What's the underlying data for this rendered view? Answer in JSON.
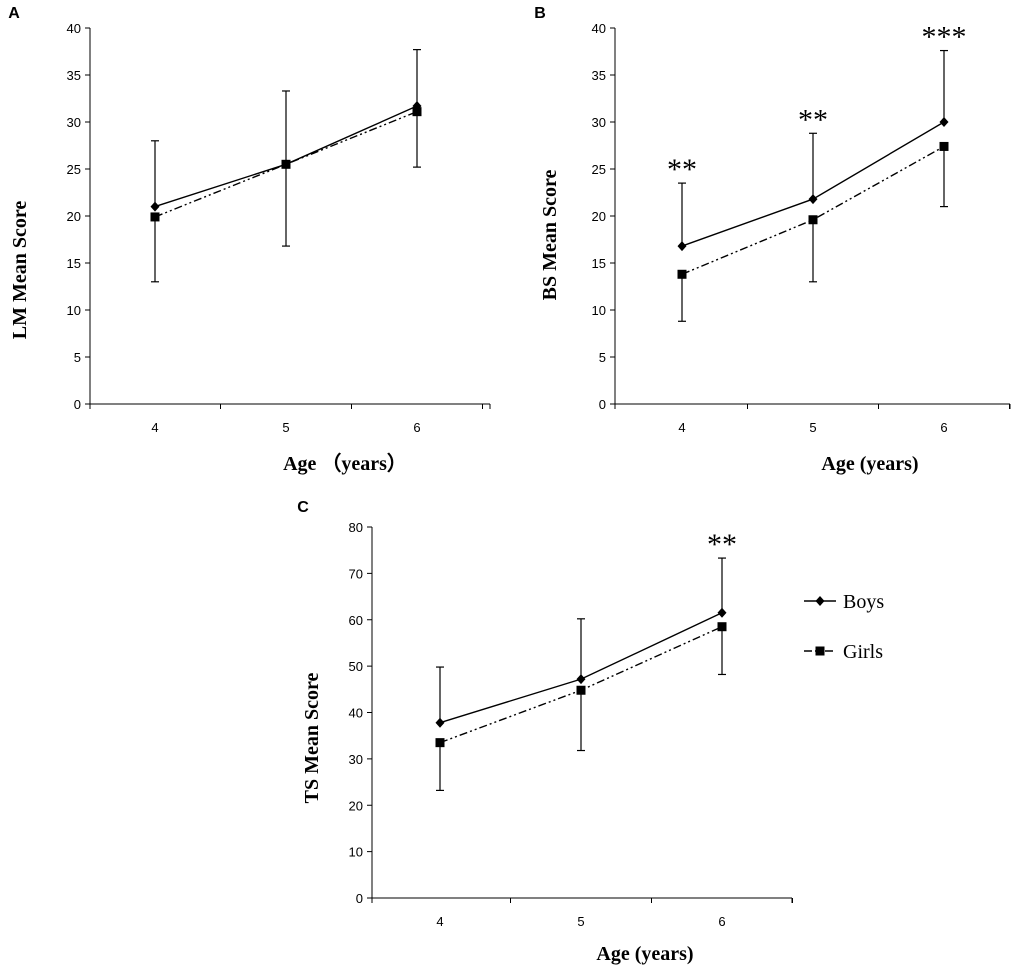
{
  "legend": {
    "items": [
      "Boys",
      "Girls"
    ],
    "placement": "right of panel C"
  },
  "chart_data": [
    {
      "panel": "A",
      "type": "line",
      "title": "",
      "xlabel": "Age （years）",
      "ylabel": "LM Mean Score",
      "categories": [
        "4",
        "5",
        "6"
      ],
      "ylim": [
        0,
        40
      ],
      "yticks": [
        0,
        5,
        10,
        15,
        20,
        25,
        30,
        35,
        40
      ],
      "series": [
        {
          "name": "Boys",
          "marker": "diamond",
          "style": "solid",
          "values": [
            21,
            25.5,
            31.7
          ],
          "error_high": [
            28,
            33.3,
            37.7
          ],
          "error_low": [
            null,
            null,
            null
          ]
        },
        {
          "name": "Girls",
          "marker": "square",
          "style": "dash-dot-dot",
          "values": [
            19.9,
            25.5,
            31.1
          ],
          "error_high": [
            null,
            null,
            null
          ],
          "error_low": [
            13,
            16.8,
            25.2
          ]
        }
      ],
      "significance": [
        "",
        "",
        ""
      ]
    },
    {
      "panel": "B",
      "type": "line",
      "title": "",
      "xlabel": "Age  (years)",
      "ylabel": "BS Mean Score",
      "categories": [
        "4",
        "5",
        "6"
      ],
      "ylim": [
        0,
        40
      ],
      "yticks": [
        0,
        5,
        10,
        15,
        20,
        25,
        30,
        35,
        40
      ],
      "series": [
        {
          "name": "Boys",
          "marker": "diamond",
          "style": "solid",
          "values": [
            16.8,
            21.8,
            30
          ],
          "error_high": [
            23.5,
            28.8,
            37.6
          ],
          "error_low": [
            null,
            null,
            null
          ]
        },
        {
          "name": "Girls",
          "marker": "square",
          "style": "dash-dot-dot",
          "values": [
            13.8,
            19.6,
            27.4
          ],
          "error_high": [
            null,
            null,
            null
          ],
          "error_low": [
            8.8,
            13,
            21
          ]
        }
      ],
      "significance": [
        "**",
        "**",
        "***"
      ]
    },
    {
      "panel": "C",
      "type": "line",
      "title": "",
      "xlabel": "Age  (years)",
      "ylabel": "TS Mean Score",
      "categories": [
        "4",
        "5",
        "6"
      ],
      "ylim": [
        0,
        80
      ],
      "yticks": [
        0,
        10,
        20,
        30,
        40,
        50,
        60,
        70,
        80
      ],
      "series": [
        {
          "name": "Boys",
          "marker": "diamond",
          "style": "solid",
          "values": [
            37.8,
            47.2,
            61.5
          ],
          "error_high": [
            49.8,
            60.2,
            73.3
          ],
          "error_low": [
            null,
            null,
            null
          ]
        },
        {
          "name": "Girls",
          "marker": "square",
          "style": "dash-dot-dot",
          "values": [
            33.5,
            44.8,
            58.5
          ],
          "error_high": [
            null,
            null,
            null
          ],
          "error_low": [
            23.2,
            31.8,
            48.2
          ]
        }
      ],
      "significance": [
        "",
        "",
        "**"
      ]
    }
  ]
}
